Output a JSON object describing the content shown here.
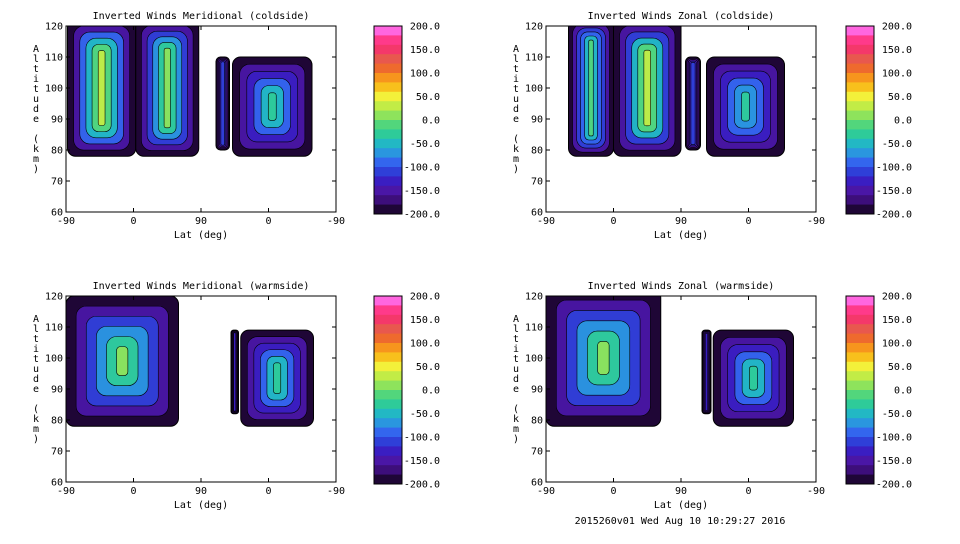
{
  "footer": "2015260v01 Wed Aug 10 10:29:27 2016",
  "colorbar": {
    "ticks": [
      "200.0",
      "150.0",
      "100.0",
      "50.0",
      "0.0",
      "-50.0",
      "-100.0",
      "-150.0",
      "-200.0"
    ],
    "colors": [
      "#ff66e0",
      "#ff3a8a",
      "#f4386a",
      "#e8584e",
      "#ee6a2e",
      "#f7951d",
      "#f8c01c",
      "#f3f03a",
      "#c2ec46",
      "#8ee35c",
      "#52d67c",
      "#2ecb99",
      "#22b8c4",
      "#2a96df",
      "#3366ee",
      "#2f3fd8",
      "#3a1ec2",
      "#4a16a6",
      "#3d0e7a",
      "#1f0636"
    ]
  },
  "chart_data": [
    {
      "type": "heatmap",
      "title": "Inverted Winds Meridional (coldside)",
      "xlabel": "Lat (deg)",
      "ylabel": "Altitude (km)",
      "x_ticks": [
        "-90",
        "0",
        "90",
        "0",
        "-90"
      ],
      "y_ticks": [
        60,
        70,
        80,
        90,
        100,
        110,
        120
      ],
      "ylim": [
        60,
        120
      ],
      "colorbar_range": [
        -200,
        200
      ],
      "regions": [
        {
          "x": [
            -88,
            3
          ],
          "alt": [
            78,
            122
          ],
          "dominant_value": 40
        },
        {
          "x": [
            3,
            87
          ],
          "alt": [
            78,
            122
          ],
          "dominant_value": 20
        },
        {
          "x": [
            110,
            128
          ],
          "alt": [
            80,
            110
          ],
          "dominant_value": -100
        },
        {
          "x": [
            132,
            238
          ],
          "alt": [
            78,
            110
          ],
          "dominant_value": -20
        }
      ]
    },
    {
      "type": "heatmap",
      "title": "Inverted Winds Zonal (coldside)",
      "xlabel": "Lat (deg)",
      "ylabel": "Altitude (km)",
      "x_ticks": [
        "-90",
        "0",
        "90",
        "0",
        "-90"
      ],
      "y_ticks": [
        60,
        70,
        80,
        90,
        100,
        110,
        120
      ],
      "ylim": [
        60,
        120
      ],
      "colorbar_range": [
        -200,
        200
      ],
      "regions": [
        {
          "x": [
            -60,
            0
          ],
          "alt": [
            78,
            122
          ],
          "dominant_value": -10
        },
        {
          "x": [
            0,
            90
          ],
          "alt": [
            78,
            122
          ],
          "dominant_value": 30
        },
        {
          "x": [
            96,
            116
          ],
          "alt": [
            80,
            110
          ],
          "dominant_value": -100
        },
        {
          "x": [
            124,
            228
          ],
          "alt": [
            78,
            110
          ],
          "dominant_value": -30
        }
      ]
    },
    {
      "type": "heatmap",
      "title": "Inverted Winds Meridional (warmside)",
      "xlabel": "Lat (deg)",
      "ylabel": "Altitude (km)",
      "x_ticks": [
        "-90",
        "0",
        "90",
        "0",
        "-90"
      ],
      "y_ticks": [
        60,
        70,
        80,
        90,
        100,
        110,
        120
      ],
      "ylim": [
        60,
        120
      ],
      "colorbar_range": [
        -200,
        200
      ],
      "regions": [
        {
          "x": [
            -90,
            60
          ],
          "alt": [
            78,
            120
          ],
          "dominant_value": 10
        },
        {
          "x": [
            130,
            140
          ],
          "alt": [
            82,
            109
          ],
          "dominant_value": -120
        },
        {
          "x": [
            143,
            240
          ],
          "alt": [
            78,
            109
          ],
          "dominant_value": -20
        }
      ]
    },
    {
      "type": "heatmap",
      "title": "Inverted Winds Zonal (warmside)",
      "xlabel": "Lat (deg)",
      "ylabel": "Altitude (km)",
      "x_ticks": [
        "-90",
        "0",
        "90",
        "0",
        "-90"
      ],
      "y_ticks": [
        60,
        70,
        80,
        90,
        100,
        110,
        120
      ],
      "ylim": [
        60,
        120
      ],
      "colorbar_range": [
        -200,
        200
      ],
      "regions": [
        {
          "x": [
            -90,
            63
          ],
          "alt": [
            78,
            122
          ],
          "dominant_value": 20
        },
        {
          "x": [
            118,
            130
          ],
          "alt": [
            82,
            109
          ],
          "dominant_value": -110
        },
        {
          "x": [
            133,
            240
          ],
          "alt": [
            78,
            109
          ],
          "dominant_value": -20
        }
      ]
    }
  ]
}
